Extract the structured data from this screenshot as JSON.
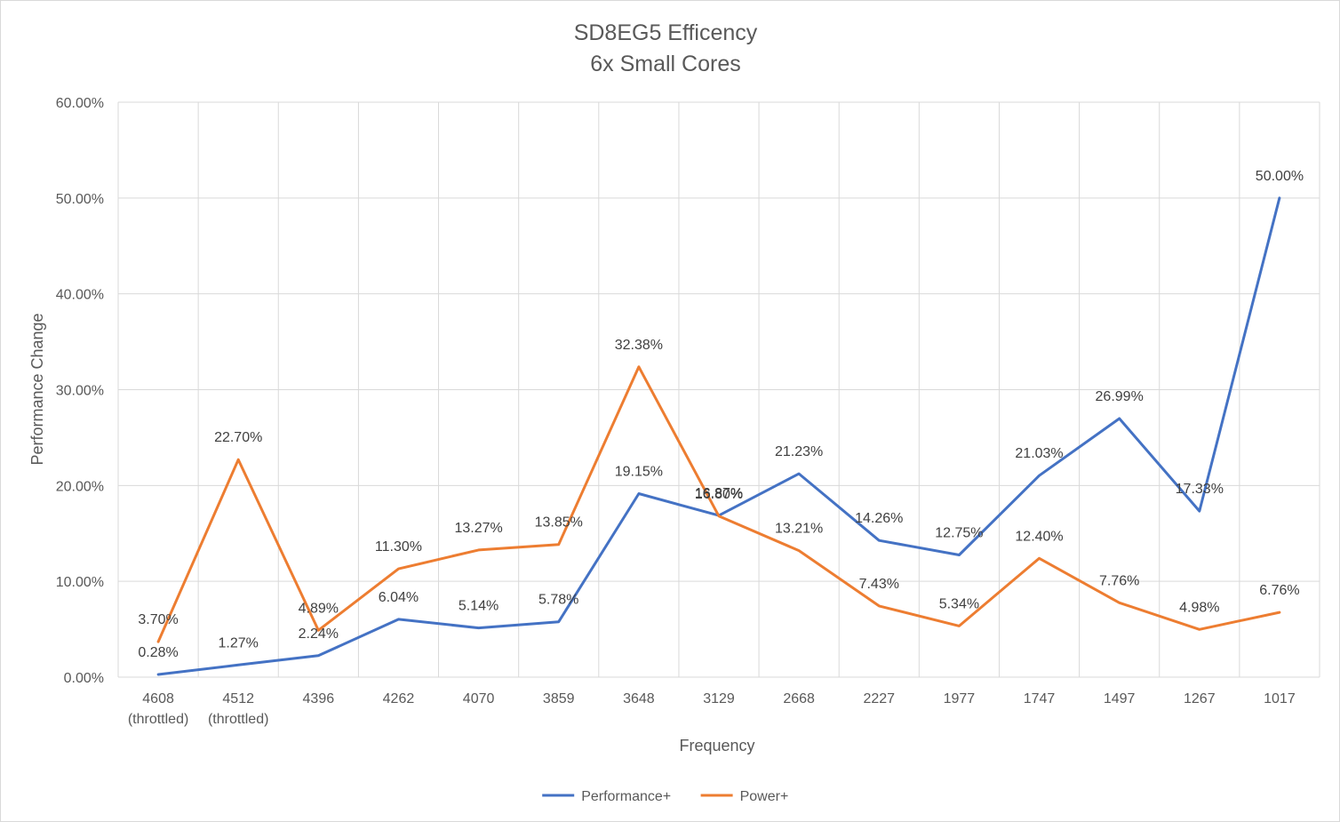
{
  "chart_data": {
    "type": "line",
    "title": "SD8EG5 Efficency",
    "subtitle": "6x Small Cores",
    "xlabel": "Frequency",
    "ylabel": "Performance Change",
    "categories": [
      [
        "4608",
        "(throttled)"
      ],
      [
        "4512",
        "(throttled)"
      ],
      [
        "4396"
      ],
      [
        "4262"
      ],
      [
        "4070"
      ],
      [
        "3859"
      ],
      [
        "3648"
      ],
      [
        "3129"
      ],
      [
        "2668"
      ],
      [
        "2227"
      ],
      [
        "1977"
      ],
      [
        "1747"
      ],
      [
        "1497"
      ],
      [
        "1267"
      ],
      [
        "1017"
      ]
    ],
    "ylim": [
      0,
      60
    ],
    "yticks": [
      0,
      10,
      20,
      30,
      40,
      50,
      60
    ],
    "ytick_labels": [
      "0.00%",
      "10.00%",
      "20.00%",
      "30.00%",
      "40.00%",
      "50.00%",
      "60.00%"
    ],
    "grid": true,
    "legend_position": "bottom",
    "series": [
      {
        "name": "Performance+",
        "color": "#4472c4",
        "values": [
          0.28,
          1.27,
          2.24,
          6.04,
          5.14,
          5.78,
          19.15,
          16.87,
          21.23,
          14.26,
          12.75,
          21.03,
          26.99,
          17.33,
          50.0
        ],
        "labels": [
          "0.28%",
          "1.27%",
          "2.24%",
          "6.04%",
          "5.14%",
          "5.78%",
          "19.15%",
          "16.87%",
          "21.23%",
          "14.26%",
          "12.75%",
          "21.03%",
          "26.99%",
          "17.33%",
          "50.00%"
        ]
      },
      {
        "name": "Power+",
        "color": "#ed7d31",
        "values": [
          3.7,
          22.7,
          4.89,
          11.3,
          13.27,
          13.85,
          32.38,
          16.8,
          13.21,
          7.43,
          5.34,
          12.4,
          7.76,
          4.98,
          6.76
        ],
        "labels": [
          "3.70%",
          "22.70%",
          "4.89%",
          "11.30%",
          "13.27%",
          "13.85%",
          "32.38%",
          "16.80%",
          "13.21%",
          "7.43%",
          "5.34%",
          "12.40%",
          "7.76%",
          "4.98%",
          "6.76%"
        ]
      }
    ]
  }
}
